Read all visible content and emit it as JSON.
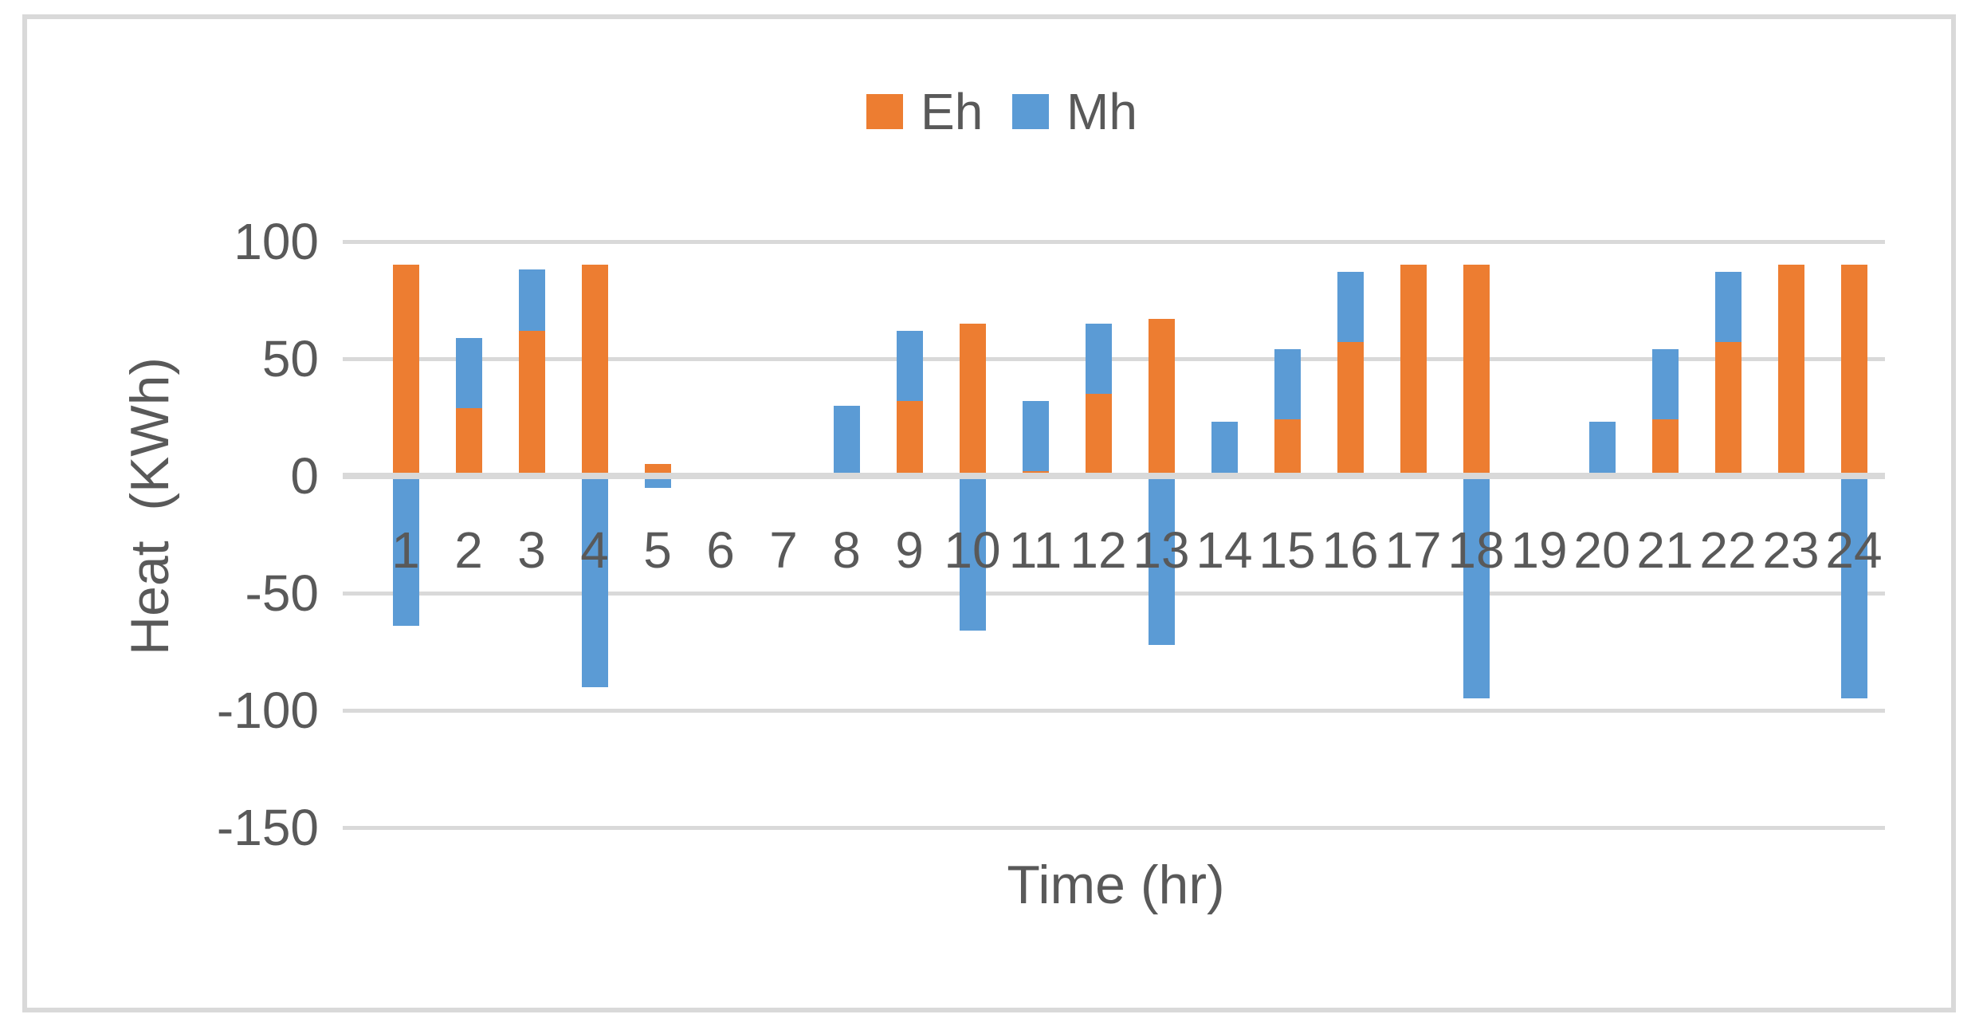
{
  "chart": {
    "legend": {
      "items": [
        {
          "label": "Eh"
        },
        {
          "label": "Mh"
        }
      ]
    },
    "x_axis_title": "Time (hr)",
    "y_axis_title": "Heat  (KWh)"
  },
  "chart_data": {
    "type": "bar",
    "stacked": true,
    "orientation": "vertical",
    "title": "",
    "xlabel": "Time (hr)",
    "ylabel": "Heat  (KWh)",
    "categories": [
      "1",
      "2",
      "3",
      "4",
      "5",
      "6",
      "7",
      "8",
      "9",
      "10",
      "11",
      "12",
      "13",
      "14",
      "15",
      "16",
      "17",
      "18",
      "19",
      "20",
      "21",
      "22",
      "23",
      "24"
    ],
    "series": [
      {
        "name": "Eh",
        "color": "#ED7D31",
        "values": [
          90,
          29,
          62,
          90,
          5,
          0,
          0,
          0,
          32,
          65,
          2,
          35,
          67,
          0,
          24,
          57,
          90,
          90,
          0,
          0,
          24,
          57,
          90,
          90
        ]
      },
      {
        "name": "Mh",
        "color": "#5B9BD5",
        "values": [
          -64,
          30,
          26,
          -90,
          -5,
          0,
          0,
          30,
          30,
          -66,
          30,
          30,
          -72,
          23,
          30,
          30,
          0,
          -95,
          0,
          23,
          30,
          30,
          0,
          -95
        ]
      }
    ],
    "ylim": [
      -150,
      100
    ],
    "yticks": [
      100,
      50,
      0,
      -50,
      -100,
      -150
    ],
    "grid": true,
    "legend_position": "top-center",
    "gridline_color": "#D9D9D9",
    "zero_line_color": "#D9D9D9",
    "text_color": "#595959"
  }
}
